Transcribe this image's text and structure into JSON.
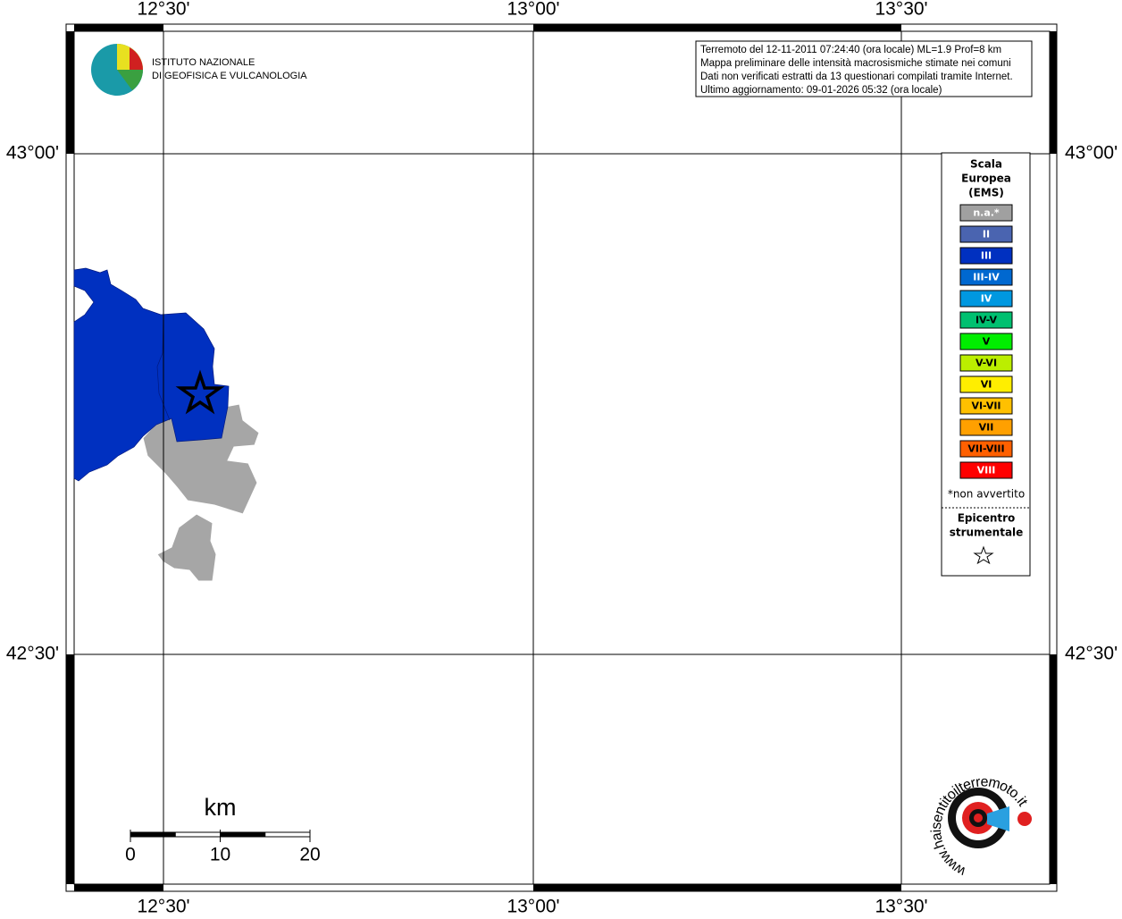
{
  "map": {
    "lon_labels": [
      "12°30'",
      "13°00'",
      "13°30'"
    ],
    "lat_labels": [
      "43°00'",
      "42°30'"
    ],
    "info": [
      "Terremoto del 12-11-2011 07:24:40 (ora locale) ML=1.9 Prof=8 km",
      "Mappa preliminare delle intensità macrosismiche stimate nei comuni",
      "Dati non verificati estratti da 13 questionari compilati tramite Internet.",
      "Ultimo aggiornamento: 09-01-2026 05:32 (ora locale)"
    ],
    "logo": [
      "ISTITUTO NAZIONALE",
      "DI GEOFISICA E VULCANOLOGIA"
    ],
    "legend": {
      "title": [
        "Scala",
        "Europea",
        "(EMS)"
      ],
      "items": [
        {
          "label": "n.a.*",
          "color": "#a0a0a0",
          "text_color": "#ffffff"
        },
        {
          "label": "II",
          "color": "#4a64b0",
          "text_color": "#ffffff"
        },
        {
          "label": "III",
          "color": "#0030c0",
          "text_color": "#ffffff"
        },
        {
          "label": "III-IV",
          "color": "#0068d0",
          "text_color": "#ffffff"
        },
        {
          "label": "IV",
          "color": "#0098e0",
          "text_color": "#ffffff"
        },
        {
          "label": "IV-V",
          "color": "#00c070",
          "text_color": "#000000"
        },
        {
          "label": "V",
          "color": "#00ee00",
          "text_color": "#000000"
        },
        {
          "label": "V-VI",
          "color": "#bbee00",
          "text_color": "#000000"
        },
        {
          "label": "VI",
          "color": "#ffee00",
          "text_color": "#000000"
        },
        {
          "label": "VI-VII",
          "color": "#ffc000",
          "text_color": "#000000"
        },
        {
          "label": "VII",
          "color": "#ffa000",
          "text_color": "#000000"
        },
        {
          "label": "VII-VIII",
          "color": "#ff6000",
          "text_color": "#000000"
        },
        {
          "label": "VIII",
          "color": "#ff0000",
          "text_color": "#ffffff"
        }
      ],
      "footnote": "*non avvertito",
      "epicentre": [
        "Epicentro",
        "strumentale"
      ]
    },
    "scale": {
      "unit": "km",
      "ticks": [
        0,
        10,
        20
      ]
    },
    "site": "www.haisentitoilterremoto.it"
  }
}
